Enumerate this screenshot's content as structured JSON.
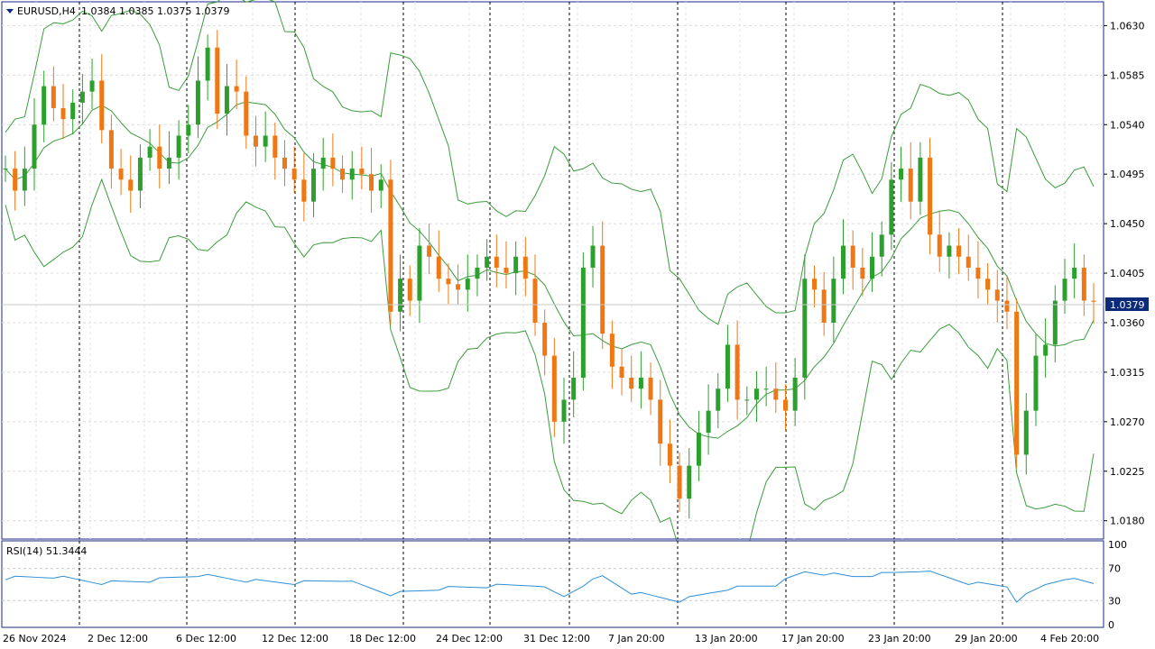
{
  "header": {
    "symbol_label": "EURUSD,H4",
    "ohlc": "1.0384 1.0385 1.0375 1.0379",
    "collapse_icon": "triangle-down-icon"
  },
  "price_axis": {
    "ticks": [
      "1.0630",
      "1.0585",
      "1.0540",
      "1.0495",
      "1.0450",
      "1.0405",
      "1.0360",
      "1.0315",
      "1.0270",
      "1.0225",
      "1.0180"
    ],
    "current_price": "1.0379"
  },
  "rsi": {
    "label": "RSI(14) 51.3444",
    "ticks": [
      "100",
      "70",
      "30",
      "0"
    ]
  },
  "time_axis": {
    "labels": [
      "26 Nov 2024",
      "2 Dec 12:00",
      "6 Dec 12:00",
      "12 Dec 12:00",
      "18 Dec 12:00",
      "24 Dec 12:00",
      "31 Dec 12:00",
      "7 Jan 20:00",
      "13 Jan 20:00",
      "17 Jan 20:00",
      "23 Jan 20:00",
      "29 Jan 20:00",
      "4 Feb 20:00"
    ]
  },
  "colors": {
    "bull": "#2ca02c",
    "bear": "#f07814",
    "bands": "#3c9c3c",
    "rsi_line": "#2e8fd6",
    "frame": "#1a2a8a",
    "price_tag": "#0b2a7a"
  },
  "chart_data": {
    "type": "candlestick",
    "symbol": "EURUSD",
    "timeframe": "H4",
    "indicators": [
      "Bollinger Bands",
      "RSI(14)"
    ],
    "ylim": [
      1.0165,
      1.065
    ],
    "rsi_ylim": [
      0,
      100
    ],
    "last": {
      "open": 1.0384,
      "high": 1.0385,
      "low": 1.0375,
      "close": 1.0379
    },
    "close_series": [
      [
        0,
        1.05
      ],
      [
        1,
        1.048
      ],
      [
        2,
        1.05
      ],
      [
        3,
        1.054
      ],
      [
        4,
        1.0575
      ],
      [
        5,
        1.0555
      ],
      [
        6,
        1.0545
      ],
      [
        7,
        1.056
      ],
      [
        8,
        1.057
      ],
      [
        9,
        1.058
      ],
      [
        10,
        1.0535
      ],
      [
        11,
        1.05
      ],
      [
        12,
        1.049
      ],
      [
        13,
        1.048
      ],
      [
        14,
        1.051
      ],
      [
        15,
        1.052
      ],
      [
        16,
        1.05
      ],
      [
        17,
        1.051
      ],
      [
        18,
        1.053
      ],
      [
        19,
        1.054
      ],
      [
        20,
        1.058
      ],
      [
        21,
        1.061
      ],
      [
        22,
        1.055
      ],
      [
        23,
        1.0575
      ],
      [
        24,
        1.057
      ],
      [
        25,
        1.053
      ],
      [
        26,
        1.052
      ],
      [
        27,
        1.053
      ],
      [
        28,
        1.051
      ],
      [
        29,
        1.05
      ],
      [
        30,
        1.049
      ],
      [
        31,
        1.047
      ],
      [
        32,
        1.05
      ],
      [
        33,
        1.051
      ],
      [
        34,
        1.05
      ],
      [
        35,
        1.049
      ],
      [
        36,
        1.05
      ],
      [
        37,
        1.0495
      ],
      [
        38,
        1.048
      ],
      [
        39,
        1.049
      ],
      [
        40,
        1.037
      ],
      [
        41,
        1.04
      ],
      [
        42,
        1.038
      ],
      [
        43,
        1.043
      ],
      [
        44,
        1.042
      ],
      [
        45,
        1.04
      ],
      [
        46,
        1.0395
      ],
      [
        47,
        1.039
      ],
      [
        48,
        1.04
      ],
      [
        49,
        1.041
      ],
      [
        50,
        1.042
      ],
      [
        51,
        1.041
      ],
      [
        52,
        1.0405
      ],
      [
        53,
        1.042
      ],
      [
        54,
        1.04
      ],
      [
        55,
        1.036
      ],
      [
        56,
        1.033
      ],
      [
        57,
        1.027
      ],
      [
        58,
        1.029
      ],
      [
        59,
        1.031
      ],
      [
        60,
        1.041
      ],
      [
        61,
        1.043
      ],
      [
        62,
        1.035
      ],
      [
        63,
        1.032
      ],
      [
        64,
        1.031
      ],
      [
        65,
        1.03
      ],
      [
        66,
        1.031
      ],
      [
        67,
        1.029
      ],
      [
        68,
        1.025
      ],
      [
        69,
        1.023
      ],
      [
        70,
        1.02
      ],
      [
        71,
        1.023
      ],
      [
        72,
        1.026
      ],
      [
        73,
        1.028
      ],
      [
        74,
        1.03
      ],
      [
        75,
        1.034
      ],
      [
        76,
        1.029
      ],
      [
        77,
        1.029
      ],
      [
        78,
        1.03
      ],
      [
        79,
        1.03
      ],
      [
        80,
        1.029
      ],
      [
        81,
        1.028
      ],
      [
        82,
        1.031
      ],
      [
        83,
        1.04
      ],
      [
        84,
        1.039
      ],
      [
        85,
        1.036
      ],
      [
        86,
        1.04
      ],
      [
        87,
        1.043
      ],
      [
        88,
        1.041
      ],
      [
        89,
        1.04
      ],
      [
        90,
        1.042
      ],
      [
        91,
        1.044
      ],
      [
        92,
        1.049
      ],
      [
        93,
        1.05
      ],
      [
        94,
        1.047
      ],
      [
        95,
        1.051
      ],
      [
        96,
        1.044
      ],
      [
        97,
        1.042
      ],
      [
        98,
        1.043
      ],
      [
        99,
        1.042
      ],
      [
        100,
        1.041
      ],
      [
        101,
        1.04
      ],
      [
        102,
        1.039
      ],
      [
        103,
        1.038
      ],
      [
        104,
        1.037
      ],
      [
        105,
        1.024
      ],
      [
        106,
        1.028
      ],
      [
        107,
        1.033
      ],
      [
        108,
        1.034
      ],
      [
        109,
        1.038
      ],
      [
        110,
        1.04
      ],
      [
        111,
        1.041
      ],
      [
        112,
        1.038
      ],
      [
        113,
        1.0379
      ]
    ],
    "rsi_series": [
      [
        0,
        58
      ],
      [
        5,
        60
      ],
      [
        10,
        52
      ],
      [
        15,
        55
      ],
      [
        20,
        62
      ],
      [
        25,
        55
      ],
      [
        30,
        52
      ],
      [
        35,
        56
      ],
      [
        40,
        38
      ],
      [
        45,
        45
      ],
      [
        50,
        48
      ],
      [
        55,
        50
      ],
      [
        58,
        35
      ],
      [
        60,
        50
      ],
      [
        62,
        60
      ],
      [
        65,
        40
      ],
      [
        70,
        30
      ],
      [
        75,
        45
      ],
      [
        80,
        50
      ],
      [
        83,
        66
      ],
      [
        88,
        60
      ],
      [
        92,
        64
      ],
      [
        95,
        68
      ],
      [
        100,
        52
      ],
      [
        104,
        48
      ],
      [
        105,
        30
      ],
      [
        108,
        50
      ],
      [
        110,
        58
      ],
      [
        113,
        51.3
      ]
    ]
  }
}
